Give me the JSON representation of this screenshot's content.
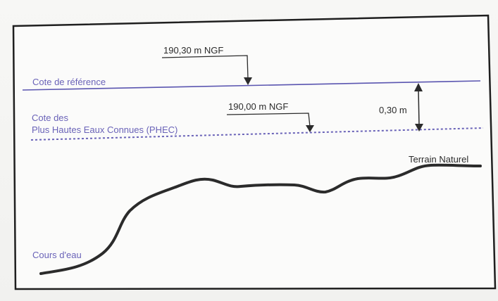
{
  "colors": {
    "frame": "#1f1f1f",
    "reference_line": "#5a55b0",
    "phec_line": "#6a63b8",
    "terrain": "#2b2b2b",
    "text_blue": "#6a63b8",
    "text_dark": "#2b2b2b"
  },
  "labels": {
    "reference_value": "190,30 m NGF",
    "reference_name": "Cote de référence",
    "phec_value": "190,00 m NGF",
    "phec_name_line1": "Cote des",
    "phec_name_line2": "Plus Hautes Eaux Connues (PHEC)",
    "offset": "0,30 m",
    "terrain": "Terrain Naturel",
    "watercourse": "Cours d'eau"
  }
}
